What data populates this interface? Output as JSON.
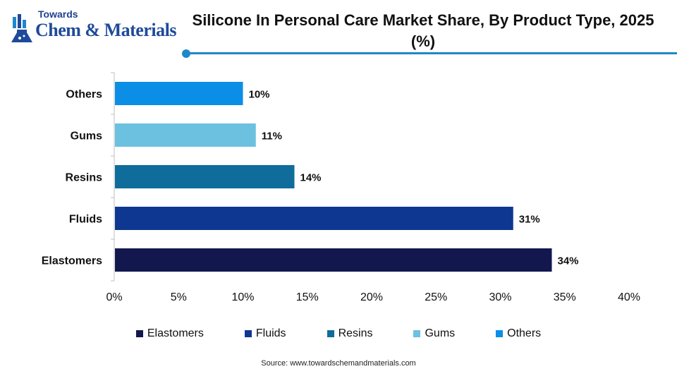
{
  "brand": {
    "top": "Towards",
    "main": "Chem & Materials"
  },
  "chart_data": {
    "type": "bar",
    "orientation": "horizontal",
    "title": "Silicone In Personal Care Market Share, By Product Type, 2025 (%)",
    "categories": [
      "Elastomers",
      "Fluids",
      "Resins",
      "Gums",
      "Others"
    ],
    "values": [
      34,
      31,
      14,
      11,
      10
    ],
    "value_labels": [
      "34%",
      "31%",
      "14%",
      "11%",
      "10%"
    ],
    "colors": [
      "#12174e",
      "#0d3791",
      "#0f6c9b",
      "#6cc0e0",
      "#0b8ee6"
    ],
    "xlim": [
      0,
      40
    ],
    "x_ticks": [
      0,
      5,
      10,
      15,
      20,
      25,
      30,
      35,
      40
    ],
    "x_tick_labels": [
      "0%",
      "5%",
      "10%",
      "15%",
      "20%",
      "25%",
      "30%",
      "35%",
      "40%"
    ],
    "grid": false,
    "legend_placement": "bottom"
  },
  "source": "Source:  www.towardschemandmaterials.com"
}
